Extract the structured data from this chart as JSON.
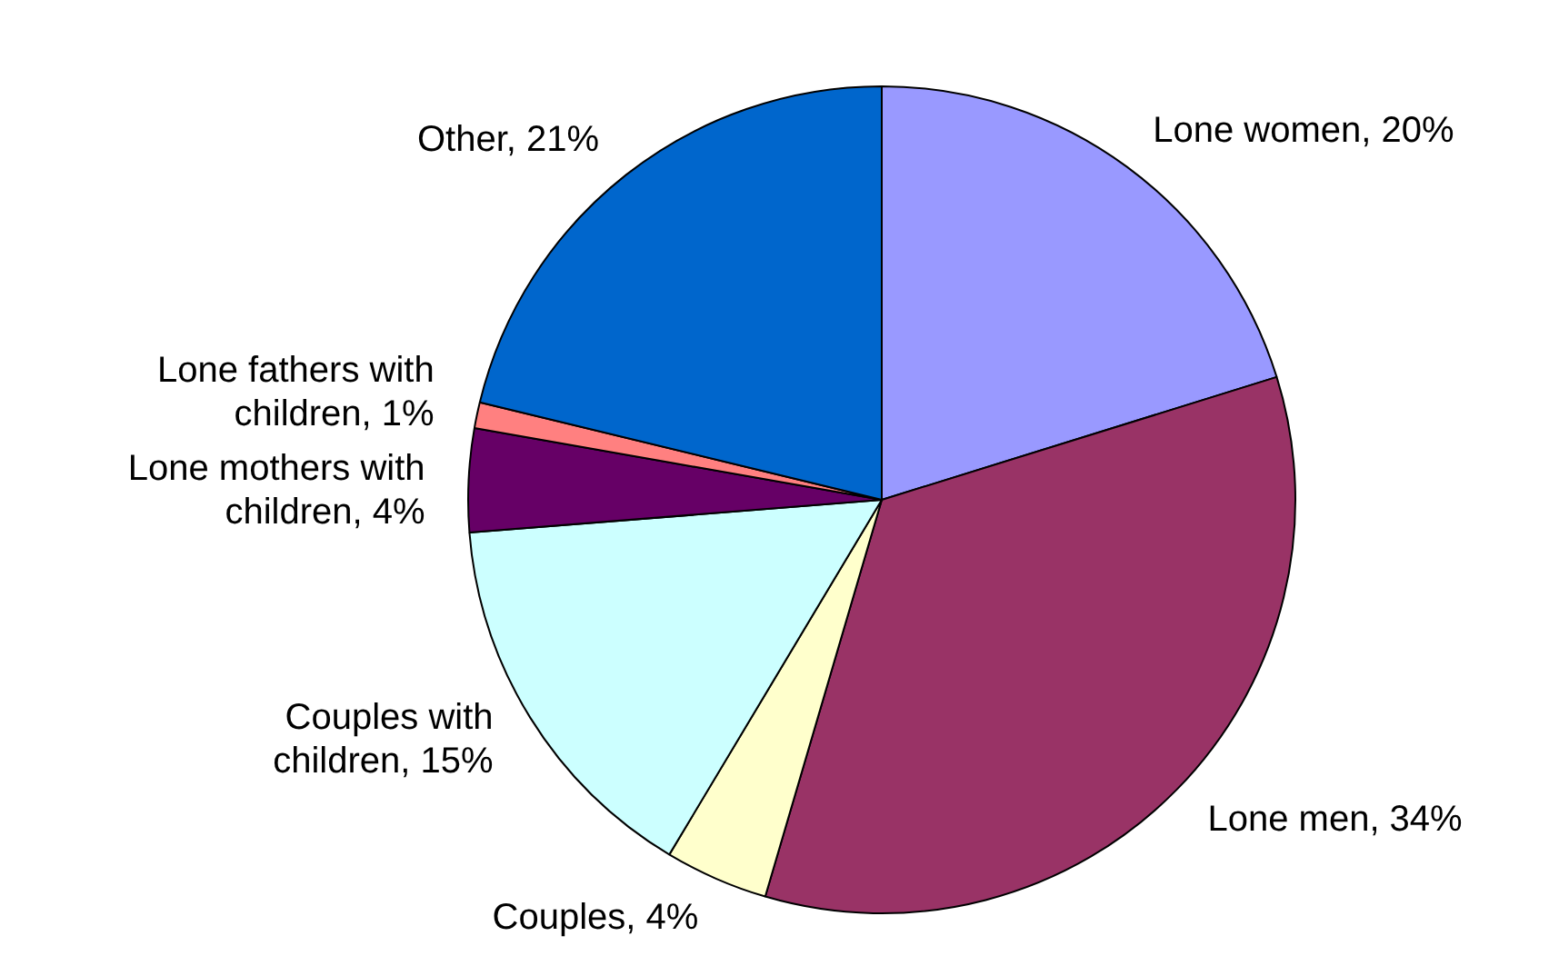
{
  "chart_data": {
    "type": "pie",
    "categories": [
      "Lone women",
      "Lone men",
      "Couples",
      "Couples with children",
      "Lone mothers with children",
      "Lone fathers with children",
      "Other"
    ],
    "values": [
      20,
      34,
      4,
      15,
      4,
      1,
      21
    ],
    "value_labels": [
      "20%",
      "34%",
      "4%",
      "15%",
      "4%",
      "1%",
      "21%"
    ],
    "colors": [
      "#9999ff",
      "#993366",
      "#ffffcc",
      "#ccffff",
      "#660066",
      "#ff8080",
      "#0066cc"
    ],
    "legend": false
  }
}
